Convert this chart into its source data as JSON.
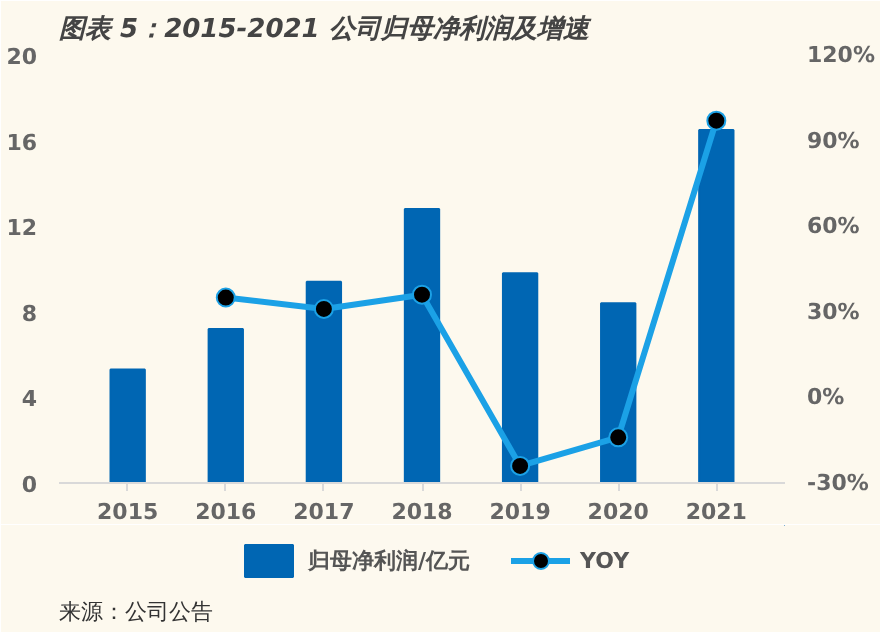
{
  "chart_data": {
    "type": "bar",
    "title": "图表 5：2015-2021 公司归母净利润及增速",
    "categories": [
      "2015",
      "2016",
      "2017",
      "2018",
      "2019",
      "2020",
      "2021"
    ],
    "series": [
      {
        "name": "归母净利润/亿元",
        "color": "#0066b3",
        "values": [
          5.3,
          7.2,
          9.4,
          12.8,
          9.8,
          8.4,
          16.5
        ]
      },
      {
        "name": "YOY",
        "type": "line",
        "axis": "y2",
        "color": "#1ba1e6",
        "marker": "circle",
        "values": [
          null,
          35,
          31,
          36,
          -24,
          -14,
          97
        ]
      }
    ],
    "ylim": [
      0,
      20
    ],
    "yticks": [
      0,
      4,
      8,
      12,
      16,
      20
    ],
    "y2lim": [
      -30,
      120
    ],
    "y2ticks": [
      {
        "value": -30,
        "label": "-30%"
      },
      {
        "value": 0,
        "label": "0%"
      },
      {
        "value": 30,
        "label": "30%"
      },
      {
        "value": 60,
        "label": "60%"
      },
      {
        "value": 90,
        "label": "90%"
      },
      {
        "value": 120,
        "label": "120%"
      }
    ],
    "grid": false,
    "legend": "bottom",
    "annotations": [
      "来源：公司公告"
    ]
  }
}
